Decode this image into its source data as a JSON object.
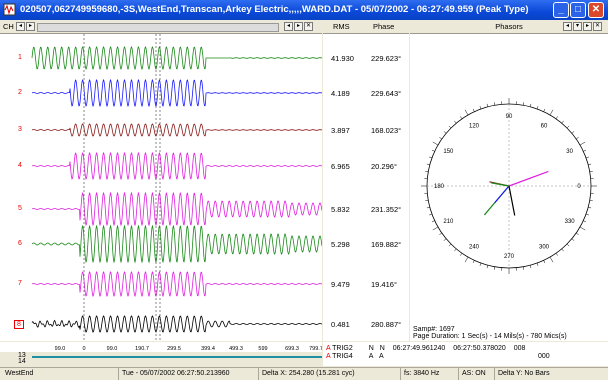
{
  "window": {
    "title": "020507,062749959680,-3S,WestEnd,Transcan,Arkey Electric,,,,,WARD.DAT - 05/07/2002 - 06:27:49.959 (Peak Type)"
  },
  "waveform_header": {
    "ch_label": "CH"
  },
  "rms_header": {
    "rms": "RMS",
    "phase": "Phase"
  },
  "phasor_header": {
    "title": "Phasors"
  },
  "channels": [
    {
      "num": "1",
      "rms": "41.930",
      "phase": "229.623°",
      "color": "#1a8a1a"
    },
    {
      "num": "2",
      "rms": "4.189",
      "phase": "229.643°",
      "color": "#1a1aff"
    },
    {
      "num": "3",
      "rms": "3.897",
      "phase": "168.023°",
      "color": "#8b1a1a"
    },
    {
      "num": "4",
      "rms": "6.965",
      "phase": "20.296°",
      "color": "#e020e0"
    },
    {
      "num": "5",
      "rms": "5.832",
      "phase": "231.352°",
      "color": "#e020e0"
    },
    {
      "num": "6",
      "rms": "5.298",
      "phase": "169.882°",
      "color": "#1a8a1a"
    },
    {
      "num": "7",
      "rms": "9.479",
      "phase": "19.416°",
      "color": "#e020e0"
    },
    {
      "num": "8",
      "rms": "0.481",
      "phase": "280.887°",
      "color": "#000000"
    }
  ],
  "time_axis": [
    "99.0",
    "0",
    "99.0",
    "190.7",
    "299.5",
    "399.4",
    "499.3",
    "599",
    "699.3",
    "799.7"
  ],
  "digital_channels": [
    "13",
    "14"
  ],
  "triggers": [
    {
      "flag": "A",
      "name": "TRIG2",
      "v1": "N",
      "v2": "N",
      "t1": "06:27:49.961240",
      "t2": "06:27:50.378020",
      "n": "008"
    },
    {
      "flag": "A",
      "name": "TRIG4",
      "v1": "A",
      "v2": "A",
      "t1": "",
      "t2": "",
      "n": "000"
    }
  ],
  "phasor_angles": [
    "90",
    "60",
    "30",
    "0",
    "330",
    "300",
    "270",
    "240",
    "210",
    "180",
    "150",
    "120"
  ],
  "phasor_info": {
    "samp": "Samp#: 1697",
    "duration": "Page Duration: 1 Sec(s) - 14 Mils(s) - 780 Mics(s)"
  },
  "status_bar": {
    "station": "WestEnd",
    "datetime": "Tue - 05/07/2002 06:27:50.213960",
    "delta_x": "Delta X: 254.280 (15.281 cyc)",
    "fs": "fs:  3840 Hz",
    "as": "AS: ON",
    "delta_y": "Delta Y:  No Bars"
  }
}
